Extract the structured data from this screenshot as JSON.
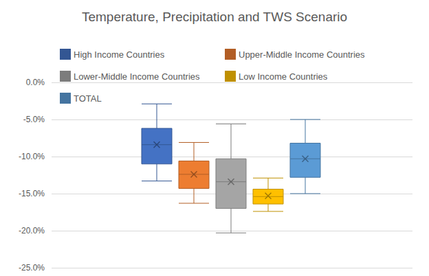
{
  "chart_data": {
    "type": "boxplot",
    "title": "Temperature, Precipitation and TWS Scenario",
    "ylim": [
      -25,
      0
    ],
    "yticks": [
      {
        "value": -25,
        "label": "-25.0%"
      },
      {
        "value": -20,
        "label": "-20.0%"
      },
      {
        "value": -15,
        "label": "-15.0%"
      },
      {
        "value": -10,
        "label": "-10.0%"
      },
      {
        "value": -5,
        "label": "-5.0%"
      },
      {
        "value": 0,
        "label": "0.0%"
      }
    ],
    "grid": true,
    "legend": "top",
    "tick_labels": "y",
    "marker": "x",
    "series": [
      {
        "name": "High Income Countries",
        "color": "#4472c4",
        "values": [
          -13.3,
          -11.0,
          -8.4,
          -6.2,
          -2.9
        ],
        "mean": -8.4
      },
      {
        "name": "Upper-Middle Income Countries",
        "color": "#ed7d31",
        "values": [
          -16.3,
          -14.3,
          -12.4,
          -10.6,
          -8.1
        ],
        "mean": -12.4
      },
      {
        "name": "Lower-Middle Income Countries",
        "color": "#a5a5a5",
        "values": [
          -20.3,
          -17.0,
          -13.4,
          -10.3,
          -5.6
        ],
        "mean": -13.4
      },
      {
        "name": "Low Income Countries",
        "color": "#ffc000",
        "values": [
          -17.4,
          -16.4,
          -15.4,
          -14.4,
          -12.9
        ],
        "mean": -15.3
      },
      {
        "name": "TOTAL",
        "color": "#5b9bd5",
        "values": [
          -15.0,
          -12.8,
          -10.3,
          -8.2,
          -5.0
        ],
        "mean": -10.3
      }
    ]
  }
}
